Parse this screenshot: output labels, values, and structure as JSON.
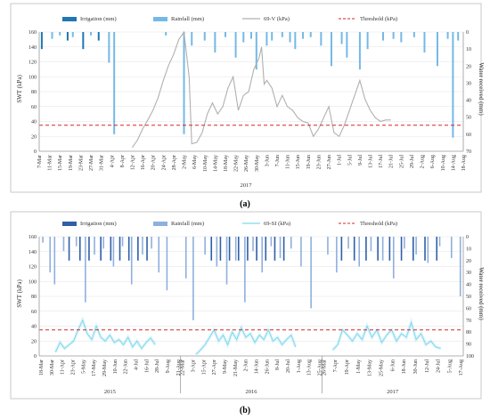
{
  "colors": {
    "irrigation_a": "#1f77b4",
    "rainfall_a": "#74b9e6",
    "swt_a": "#b0b0b0",
    "irrigation_b": "#2f5fa8",
    "rainfall_b": "#8fb0de",
    "swt_b": "#7fd8ee",
    "threshold": "#d62728"
  },
  "chart_data": [
    {
      "type": "line",
      "panel_label": "(a)",
      "ylabel": "SWT (kPa)",
      "y2label": "Water received (mm)",
      "ylim": [
        0,
        160
      ],
      "yticks": [
        "0",
        "20",
        "40",
        "60",
        "80",
        "100",
        "120",
        "140",
        "160"
      ],
      "y2lim": [
        0,
        70
      ],
      "y2ticks": [
        "0",
        "10",
        "20",
        "30",
        "40",
        "50",
        "60",
        "70"
      ],
      "xlim": [
        "2017-03-07",
        "2017-08-18"
      ],
      "xticks": [
        "7-Mar",
        "11-Mar",
        "15-Mar",
        "19-Mar",
        "23-Mar",
        "27-Mar",
        "31-Mar",
        "4-Apr",
        "8-Apr",
        "12-Apr",
        "16-Apr",
        "20-Apr",
        "24-Apr",
        "28-Apr",
        "2-May",
        "6-May",
        "10-May",
        "14-May",
        "18-May",
        "22-May",
        "26-May",
        "30-May",
        "3-Jun",
        "7-Jun",
        "11-Jun",
        "15-Jun",
        "19-Jun",
        "23-Jun",
        "27-Jun",
        "1-Jul",
        "5-Jul",
        "9-Jul",
        "13-Jul",
        "17-Jul",
        "21-Jul",
        "25-Jul",
        "29-Jul",
        "2-Aug",
        "6-Aug",
        "10-Aug",
        "14-Aug",
        "18-Aug"
      ],
      "years": [
        "2017"
      ],
      "legend": {
        "irrigation": "Irrigation (mm)",
        "rainfall": "Rainfall (mm)",
        "swt": "69-V (kPa)",
        "threshold": "Threshold (kPa)"
      },
      "threshold": 35,
      "swt_series": {
        "x": [
          "2017-04-12",
          "2017-04-14",
          "2017-04-16",
          "2017-04-18",
          "2017-04-20",
          "2017-04-22",
          "2017-04-24",
          "2017-04-26",
          "2017-04-28",
          "2017-04-30",
          "2017-05-02",
          "2017-05-03",
          "2017-05-04",
          "2017-05-05",
          "2017-05-07",
          "2017-05-09",
          "2017-05-11",
          "2017-05-13",
          "2017-05-15",
          "2017-05-17",
          "2017-05-19",
          "2017-05-21",
          "2017-05-23",
          "2017-05-25",
          "2017-05-27",
          "2017-05-29",
          "2017-05-31",
          "2017-06-01",
          "2017-06-02",
          "2017-06-03",
          "2017-06-05",
          "2017-06-07",
          "2017-06-09",
          "2017-06-11",
          "2017-06-13",
          "2017-06-15",
          "2017-06-17",
          "2017-06-19",
          "2017-06-21",
          "2017-06-23",
          "2017-06-25",
          "2017-06-27",
          "2017-06-29",
          "2017-07-01",
          "2017-07-03",
          "2017-07-05",
          "2017-07-07",
          "2017-07-09",
          "2017-07-11",
          "2017-07-13",
          "2017-07-15",
          "2017-07-17",
          "2017-07-19",
          "2017-07-21"
        ],
        "y": [
          5,
          15,
          30,
          42,
          55,
          72,
          95,
          115,
          130,
          150,
          160,
          130,
          100,
          10,
          12,
          25,
          50,
          65,
          50,
          60,
          85,
          100,
          55,
          75,
          80,
          110,
          125,
          140,
          90,
          95,
          85,
          60,
          75,
          60,
          55,
          45,
          40,
          38,
          20,
          30,
          45,
          60,
          25,
          20,
          35,
          55,
          75,
          95,
          70,
          55,
          45,
          40,
          42,
          42
        ]
      },
      "irrigation": [
        {
          "date": "2017-03-08",
          "mm": 10
        },
        {
          "date": "2017-03-18",
          "mm": 5
        },
        {
          "date": "2017-03-24",
          "mm": 10
        },
        {
          "date": "2017-03-30",
          "mm": 5
        }
      ],
      "rainfall": [
        {
          "date": "2017-03-12",
          "mm": 4
        },
        {
          "date": "2017-03-15",
          "mm": 2
        },
        {
          "date": "2017-03-20",
          "mm": 3
        },
        {
          "date": "2017-03-27",
          "mm": 2
        },
        {
          "date": "2017-04-03",
          "mm": 18
        },
        {
          "date": "2017-04-05",
          "mm": 60
        },
        {
          "date": "2017-04-25",
          "mm": 2
        },
        {
          "date": "2017-05-02",
          "mm": 60
        },
        {
          "date": "2017-05-05",
          "mm": 8
        },
        {
          "date": "2017-05-10",
          "mm": 5
        },
        {
          "date": "2017-05-14",
          "mm": 12
        },
        {
          "date": "2017-05-18",
          "mm": 3
        },
        {
          "date": "2017-05-22",
          "mm": 15
        },
        {
          "date": "2017-05-25",
          "mm": 6
        },
        {
          "date": "2017-05-28",
          "mm": 4
        },
        {
          "date": "2017-05-30",
          "mm": 22
        },
        {
          "date": "2017-06-03",
          "mm": 8
        },
        {
          "date": "2017-06-05",
          "mm": 5
        },
        {
          "date": "2017-06-09",
          "mm": 3
        },
        {
          "date": "2017-06-12",
          "mm": 6
        },
        {
          "date": "2017-06-14",
          "mm": 10
        },
        {
          "date": "2017-06-17",
          "mm": 4
        },
        {
          "date": "2017-06-20",
          "mm": 3
        },
        {
          "date": "2017-06-24",
          "mm": 8
        },
        {
          "date": "2017-06-28",
          "mm": 20
        },
        {
          "date": "2017-07-02",
          "mm": 7
        },
        {
          "date": "2017-07-04",
          "mm": 15
        },
        {
          "date": "2017-07-09",
          "mm": 22
        },
        {
          "date": "2017-07-12",
          "mm": 10
        },
        {
          "date": "2017-07-18",
          "mm": 5
        },
        {
          "date": "2017-07-22",
          "mm": 4
        },
        {
          "date": "2017-07-25",
          "mm": 6
        },
        {
          "date": "2017-07-30",
          "mm": 3
        },
        {
          "date": "2017-08-03",
          "mm": 12
        },
        {
          "date": "2017-08-08",
          "mm": 20
        },
        {
          "date": "2017-08-12",
          "mm": 4
        },
        {
          "date": "2017-08-14",
          "mm": 62
        },
        {
          "date": "2017-08-16",
          "mm": 5
        }
      ]
    },
    {
      "type": "line",
      "panel_label": "(b)",
      "ylabel": "SWT (kPa)",
      "y2label": "Water received (mm)",
      "ylim": [
        0,
        160
      ],
      "yticks": [
        "0",
        "20",
        "40",
        "60",
        "80",
        "100",
        "120",
        "140",
        "160"
      ],
      "y2lim": [
        0,
        100
      ],
      "y2ticks": [
        "0",
        "10",
        "20",
        "30",
        "40",
        "50",
        "60",
        "70",
        "80",
        "90",
        "100"
      ],
      "x_segments": [
        {
          "year": "2015",
          "start": "2015-03-18",
          "end": "2015-08-21",
          "labels": [
            "18-Mar",
            "30-Mar",
            "11-Apr",
            "23-Apr",
            "5-May",
            "17-May",
            "29-May",
            "10-Jun",
            "22-Jun",
            "4-Jul",
            "16-Jul",
            "28-Jul",
            "9-Aug",
            "21-Aug"
          ]
        },
        {
          "year": "2016",
          "start": "2016-03-22",
          "end": "2016-08-25",
          "labels": [
            "22-Mar",
            "3-Apr",
            "15-Apr",
            "27-Apr",
            "9-May",
            "21-May",
            "2-Jun",
            "14-Jun",
            "26-Jun",
            "8-Jul",
            "20-Jul",
            "1-Aug",
            "13-Aug",
            "25-Aug"
          ]
        },
        {
          "year": "2017",
          "start": "2017-03-26",
          "end": "2017-08-17",
          "labels": [
            "26-Mar",
            "7-Apr",
            "19-Apr",
            "1-May",
            "13-May",
            "25-May",
            "6-Jun",
            "18-Jun",
            "30-Jun",
            "12-Jul",
            "24-Jul",
            "5-Aug",
            "17-Aug"
          ]
        }
      ],
      "years": [
        "2015",
        "2016",
        "2017"
      ],
      "legend": {
        "irrigation": "Irrigation (mm)",
        "rainfall": "Rainfall (mm)",
        "swt": "69-SI (kPa)",
        "threshold": "Threshold (kPa)"
      },
      "threshold": 35,
      "swt_series": [
        {
          "year": "2015",
          "x": [
            "2015-04-05",
            "2015-04-10",
            "2015-04-15",
            "2015-04-20",
            "2015-04-25",
            "2015-04-30",
            "2015-05-05",
            "2015-05-10",
            "2015-05-15",
            "2015-05-20",
            "2015-05-25",
            "2015-05-30",
            "2015-06-04",
            "2015-06-09",
            "2015-06-14",
            "2015-06-19",
            "2015-06-24",
            "2015-06-29",
            "2015-07-04",
            "2015-07-09",
            "2015-07-14",
            "2015-07-19",
            "2015-07-24"
          ],
          "y": [
            5,
            18,
            10,
            15,
            20,
            35,
            48,
            30,
            22,
            40,
            25,
            20,
            28,
            18,
            22,
            15,
            25,
            12,
            20,
            10,
            18,
            24,
            15
          ]
        },
        {
          "year": "2016",
          "x": [
            "2016-04-08",
            "2016-04-13",
            "2016-04-18",
            "2016-04-23",
            "2016-04-28",
            "2016-05-03",
            "2016-05-08",
            "2016-05-13",
            "2016-05-18",
            "2016-05-23",
            "2016-05-28",
            "2016-06-02",
            "2016-06-07",
            "2016-06-12",
            "2016-06-17",
            "2016-06-22",
            "2016-06-27",
            "2016-07-02",
            "2016-07-07",
            "2016-07-12",
            "2016-07-17",
            "2016-07-22",
            "2016-07-27"
          ],
          "y": [
            2,
            8,
            15,
            25,
            35,
            20,
            28,
            15,
            32,
            22,
            38,
            25,
            30,
            18,
            28,
            22,
            35,
            20,
            25,
            15,
            22,
            28,
            12
          ]
        },
        {
          "year": "2017",
          "x": [
            "2017-04-06",
            "2017-04-11",
            "2017-04-16",
            "2017-04-21",
            "2017-04-26",
            "2017-05-01",
            "2017-05-06",
            "2017-05-11",
            "2017-05-16",
            "2017-05-21",
            "2017-05-26",
            "2017-05-31",
            "2017-06-05",
            "2017-06-10",
            "2017-06-15",
            "2017-06-20",
            "2017-06-25",
            "2017-06-30",
            "2017-07-05",
            "2017-07-10",
            "2017-07-15",
            "2017-07-20",
            "2017-07-25"
          ],
          "y": [
            8,
            15,
            35,
            28,
            20,
            30,
            22,
            40,
            25,
            35,
            18,
            28,
            35,
            20,
            30,
            25,
            45,
            22,
            30,
            15,
            20,
            12,
            10
          ]
        }
      ],
      "irrigation": [
        {
          "date": "2015-04-20",
          "mm": 20
        },
        {
          "date": "2015-05-02",
          "mm": 20
        },
        {
          "date": "2015-05-12",
          "mm": 20
        },
        {
          "date": "2015-05-25",
          "mm": 20
        },
        {
          "date": "2015-06-05",
          "mm": 20
        },
        {
          "date": "2015-06-15",
          "mm": 20
        },
        {
          "date": "2015-06-25",
          "mm": 20
        },
        {
          "date": "2015-07-05",
          "mm": 20
        },
        {
          "date": "2015-07-15",
          "mm": 20
        },
        {
          "date": "2016-04-25",
          "mm": 20
        },
        {
          "date": "2016-05-05",
          "mm": 20
        },
        {
          "date": "2016-05-15",
          "mm": 20
        },
        {
          "date": "2016-05-25",
          "mm": 20
        },
        {
          "date": "2016-06-04",
          "mm": 20
        },
        {
          "date": "2016-06-14",
          "mm": 20
        },
        {
          "date": "2016-06-24",
          "mm": 20
        },
        {
          "date": "2016-07-04",
          "mm": 20
        },
        {
          "date": "2016-07-14",
          "mm": 20
        },
        {
          "date": "2017-04-15",
          "mm": 20
        },
        {
          "date": "2017-04-28",
          "mm": 20
        },
        {
          "date": "2017-05-10",
          "mm": 20
        },
        {
          "date": "2017-05-22",
          "mm": 20
        },
        {
          "date": "2017-06-03",
          "mm": 20
        },
        {
          "date": "2017-06-15",
          "mm": 20
        },
        {
          "date": "2017-06-27",
          "mm": 20
        },
        {
          "date": "2017-07-09",
          "mm": 20
        },
        {
          "date": "2017-07-21",
          "mm": 20
        }
      ],
      "rainfall": [
        {
          "date": "2015-03-22",
          "mm": 5
        },
        {
          "date": "2015-03-30",
          "mm": 30
        },
        {
          "date": "2015-04-04",
          "mm": 40
        },
        {
          "date": "2015-04-14",
          "mm": 12
        },
        {
          "date": "2015-04-28",
          "mm": 8
        },
        {
          "date": "2015-05-08",
          "mm": 55
        },
        {
          "date": "2015-05-18",
          "mm": 15
        },
        {
          "date": "2015-05-28",
          "mm": 10
        },
        {
          "date": "2015-06-08",
          "mm": 25
        },
        {
          "date": "2015-06-18",
          "mm": 8
        },
        {
          "date": "2015-06-28",
          "mm": 40
        },
        {
          "date": "2015-07-10",
          "mm": 15
        },
        {
          "date": "2015-07-20",
          "mm": 10
        },
        {
          "date": "2015-07-28",
          "mm": 30
        },
        {
          "date": "2015-08-06",
          "mm": 45
        },
        {
          "date": "2016-03-28",
          "mm": 35
        },
        {
          "date": "2016-04-05",
          "mm": 70
        },
        {
          "date": "2016-04-18",
          "mm": 15
        },
        {
          "date": "2016-05-01",
          "mm": 25
        },
        {
          "date": "2016-05-12",
          "mm": 40
        },
        {
          "date": "2016-05-22",
          "mm": 20
        },
        {
          "date": "2016-06-01",
          "mm": 55
        },
        {
          "date": "2016-06-10",
          "mm": 12
        },
        {
          "date": "2016-06-20",
          "mm": 30
        },
        {
          "date": "2016-06-30",
          "mm": 8
        },
        {
          "date": "2016-07-10",
          "mm": 18
        },
        {
          "date": "2016-07-22",
          "mm": 10
        },
        {
          "date": "2016-08-02",
          "mm": 25
        },
        {
          "date": "2016-08-13",
          "mm": 60
        },
        {
          "date": "2017-04-01",
          "mm": 15
        },
        {
          "date": "2017-04-10",
          "mm": 30
        },
        {
          "date": "2017-04-22",
          "mm": 10
        },
        {
          "date": "2017-05-03",
          "mm": 25
        },
        {
          "date": "2017-05-15",
          "mm": 12
        },
        {
          "date": "2017-05-27",
          "mm": 20
        },
        {
          "date": "2017-06-07",
          "mm": 35
        },
        {
          "date": "2017-06-18",
          "mm": 10
        },
        {
          "date": "2017-06-30",
          "mm": 15
        },
        {
          "date": "2017-07-12",
          "mm": 22
        },
        {
          "date": "2017-07-24",
          "mm": 8
        },
        {
          "date": "2017-08-05",
          "mm": 18
        },
        {
          "date": "2017-08-14",
          "mm": 50
        }
      ]
    }
  ]
}
